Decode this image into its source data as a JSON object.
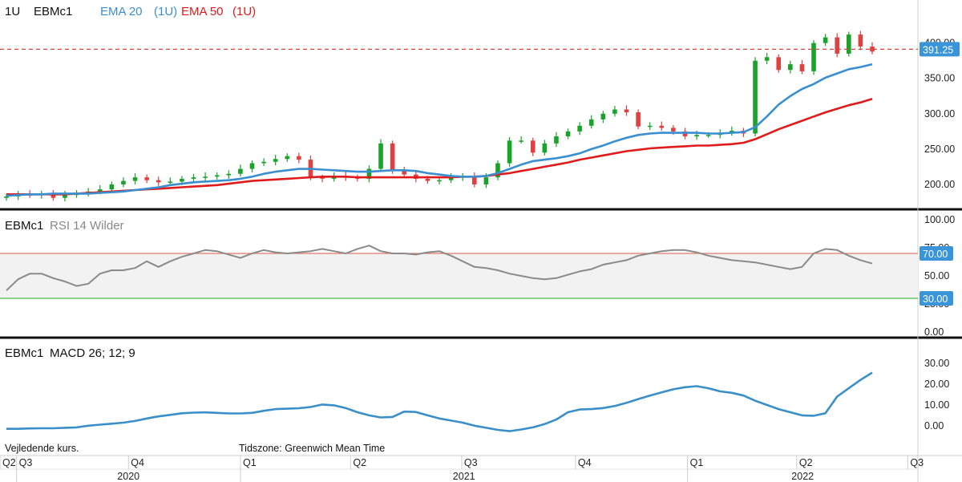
{
  "header": {
    "interval": "1U",
    "symbol": "EBMc1",
    "ema20_label": "EMA 20",
    "ema20_interval": "(1U)",
    "ema50_label": "EMA 50",
    "ema50_interval": "(1U)"
  },
  "rsi_header": {
    "symbol": "EBMc1",
    "label": "RSI 14 Wilder"
  },
  "macd_header": {
    "symbol": "EBMc1",
    "label": "MACD 26; 12; 9"
  },
  "footer": {
    "note_left": "Vejledende kurs.",
    "timezone": "Tidszone: Greenwich Mean Time"
  },
  "colors": {
    "up": "#19a32a",
    "down": "#e04040",
    "ema20": "#3a8fd0",
    "ema50": "#e01b1b",
    "rsi_line": "#8a8a8a",
    "rsi_upper": "#e07a6a",
    "rsi_lower": "#44bb44",
    "macd": "#3a8fc8",
    "badge": "#3a95d8"
  },
  "chart_data": [
    {
      "type": "candlestick",
      "price_axis": {
        "ylim": [
          175,
          445
        ],
        "ticks": [
          "200.00",
          "250.00",
          "300.00",
          "350.00",
          "400.00"
        ]
      },
      "last_price": "391.25",
      "series": [
        {
          "name": "EBMc1",
          "kind": "candles"
        },
        {
          "name": "EMA 20 (1U)",
          "values": [
            184,
            185,
            186,
            186,
            187,
            187,
            187,
            187,
            188,
            189,
            190,
            192,
            194,
            196,
            199,
            201,
            203,
            204,
            205,
            206,
            208,
            211,
            215,
            218,
            220,
            222,
            222,
            221,
            220,
            219,
            218,
            218,
            219,
            220,
            220,
            219,
            216,
            214,
            212,
            211,
            211,
            212,
            216,
            222,
            228,
            233,
            235,
            237,
            240,
            244,
            250,
            255,
            261,
            266,
            270,
            272,
            273,
            273,
            273,
            273,
            272,
            272,
            273,
            274,
            281,
            296,
            313,
            325,
            335,
            342,
            351,
            357,
            363,
            366,
            370
          ]
        },
        {
          "name": "EMA 50 (1U)",
          "values": [
            186,
            186,
            186,
            186,
            186,
            186,
            187,
            188,
            189,
            190,
            191,
            192,
            193,
            194,
            195,
            196,
            197,
            198,
            199,
            201,
            203,
            205,
            206,
            207,
            208,
            209,
            210,
            211,
            211,
            211,
            210,
            210,
            210,
            210,
            210,
            210,
            210,
            210,
            210,
            211,
            211,
            212,
            214,
            216,
            219,
            222,
            225,
            228,
            231,
            235,
            238,
            241,
            244,
            247,
            249,
            251,
            252,
            253,
            254,
            255,
            255,
            256,
            257,
            259,
            264,
            271,
            278,
            284,
            290,
            296,
            302,
            307,
            312,
            316,
            321
          ]
        }
      ]
    },
    {
      "type": "line",
      "title": "RSI 14 Wilder",
      "ylim": [
        0,
        100
      ],
      "ticks": [
        "0.00",
        "25.00",
        "50.00",
        "75.00",
        "100.00"
      ],
      "levels": [
        "70.00",
        "30.00"
      ],
      "series": [
        {
          "name": "RSI 14 Wilder",
          "values": [
            37,
            47,
            52,
            52,
            48,
            45,
            41,
            43,
            52,
            55,
            55,
            57,
            63,
            58,
            63,
            67,
            70,
            73,
            72,
            69,
            66,
            70,
            73,
            71,
            70,
            71,
            72,
            74,
            72,
            70,
            74,
            77,
            72,
            70,
            70,
            69,
            71,
            72,
            68,
            63,
            58,
            57,
            55,
            52,
            50,
            48,
            47,
            48,
            51,
            54,
            56,
            60,
            62,
            64,
            68,
            70,
            72,
            73,
            73,
            71,
            68,
            66,
            64,
            63,
            62,
            60,
            58,
            56,
            58,
            70,
            74,
            73,
            68,
            64,
            61
          ]
        }
      ]
    },
    {
      "type": "line",
      "title": "MACD 26; 12; 9",
      "ylim": [
        -12,
        40
      ],
      "ticks": [
        "0.00",
        "10.00",
        "20.00",
        "30.00"
      ],
      "series": [
        {
          "name": "MACD 26; 12; 9",
          "values": [
            -1.5,
            -1.5,
            -1.3,
            -1.2,
            -1.2,
            -1.0,
            -0.8,
            0.0,
            0.5,
            1.0,
            1.5,
            2.3,
            3.5,
            4.5,
            5.2,
            6.0,
            6.3,
            6.4,
            6.2,
            5.9,
            5.9,
            6.2,
            7.2,
            8.0,
            8.2,
            8.4,
            9.0,
            10.2,
            9.8,
            8.5,
            6.5,
            5.0,
            4.0,
            4.2,
            6.8,
            6.6,
            5.0,
            3.5,
            2.5,
            1.5,
            0.0,
            -1.0,
            -2.0,
            -2.6,
            -1.8,
            -0.8,
            0.8,
            3.0,
            6.5,
            7.8,
            8.0,
            8.5,
            9.5,
            11.0,
            12.8,
            14.5,
            16.0,
            17.5,
            18.5,
            19.0,
            18.0,
            16.5,
            15.8,
            14.5,
            12.0,
            10.0,
            8.0,
            6.5,
            5.0,
            4.8,
            6.0,
            14.0,
            18.0,
            22.0,
            25.5
          ]
        }
      ]
    }
  ],
  "x_axis": {
    "quarters": [
      {
        "label": "Q2",
        "frac": 0.0
      },
      {
        "label": "Q3",
        "frac": 0.018
      },
      {
        "label": "Q4",
        "frac": 0.14
      },
      {
        "label": "Q1",
        "frac": 0.262
      },
      {
        "label": "Q2",
        "frac": 0.382
      },
      {
        "label": "Q3",
        "frac": 0.503
      },
      {
        "label": "Q4",
        "frac": 0.627
      },
      {
        "label": "Q1",
        "frac": 0.749
      },
      {
        "label": "Q2",
        "frac": 0.868
      },
      {
        "label": "Q3",
        "frac": 0.989
      }
    ],
    "years": [
      "2020",
      "2021",
      "2022"
    ]
  }
}
